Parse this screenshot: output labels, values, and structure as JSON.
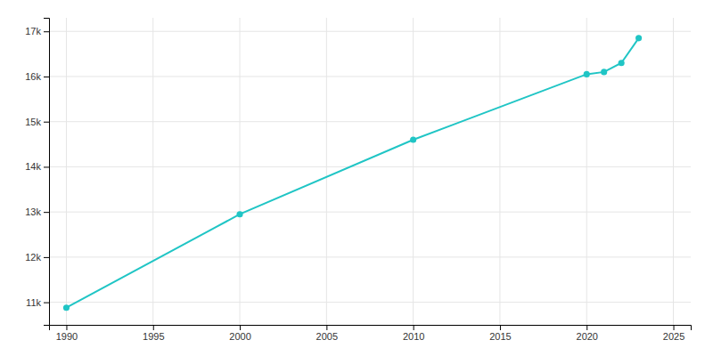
{
  "chart_data": {
    "type": "line",
    "x": [
      1990,
      2000,
      2010,
      2020,
      2021,
      2022,
      2023
    ],
    "values": [
      10880,
      12950,
      14600,
      16050,
      16100,
      16300,
      16850
    ],
    "color": "#20c5c5",
    "marker": "circle",
    "xlim": [
      1989,
      2026
    ],
    "xticks": [
      1990,
      1995,
      2000,
      2005,
      2010,
      2015,
      2020,
      2025
    ],
    "ylim": [
      10500,
      17300
    ],
    "yticks": [
      {
        "value": 11000,
        "label": "11k"
      },
      {
        "value": 12000,
        "label": "12k"
      },
      {
        "value": 13000,
        "label": "13k"
      },
      {
        "value": 14000,
        "label": "14k"
      },
      {
        "value": 15000,
        "label": "15k"
      },
      {
        "value": 16000,
        "label": "16k"
      },
      {
        "value": 17000,
        "label": "17k"
      }
    ],
    "grid": true
  }
}
